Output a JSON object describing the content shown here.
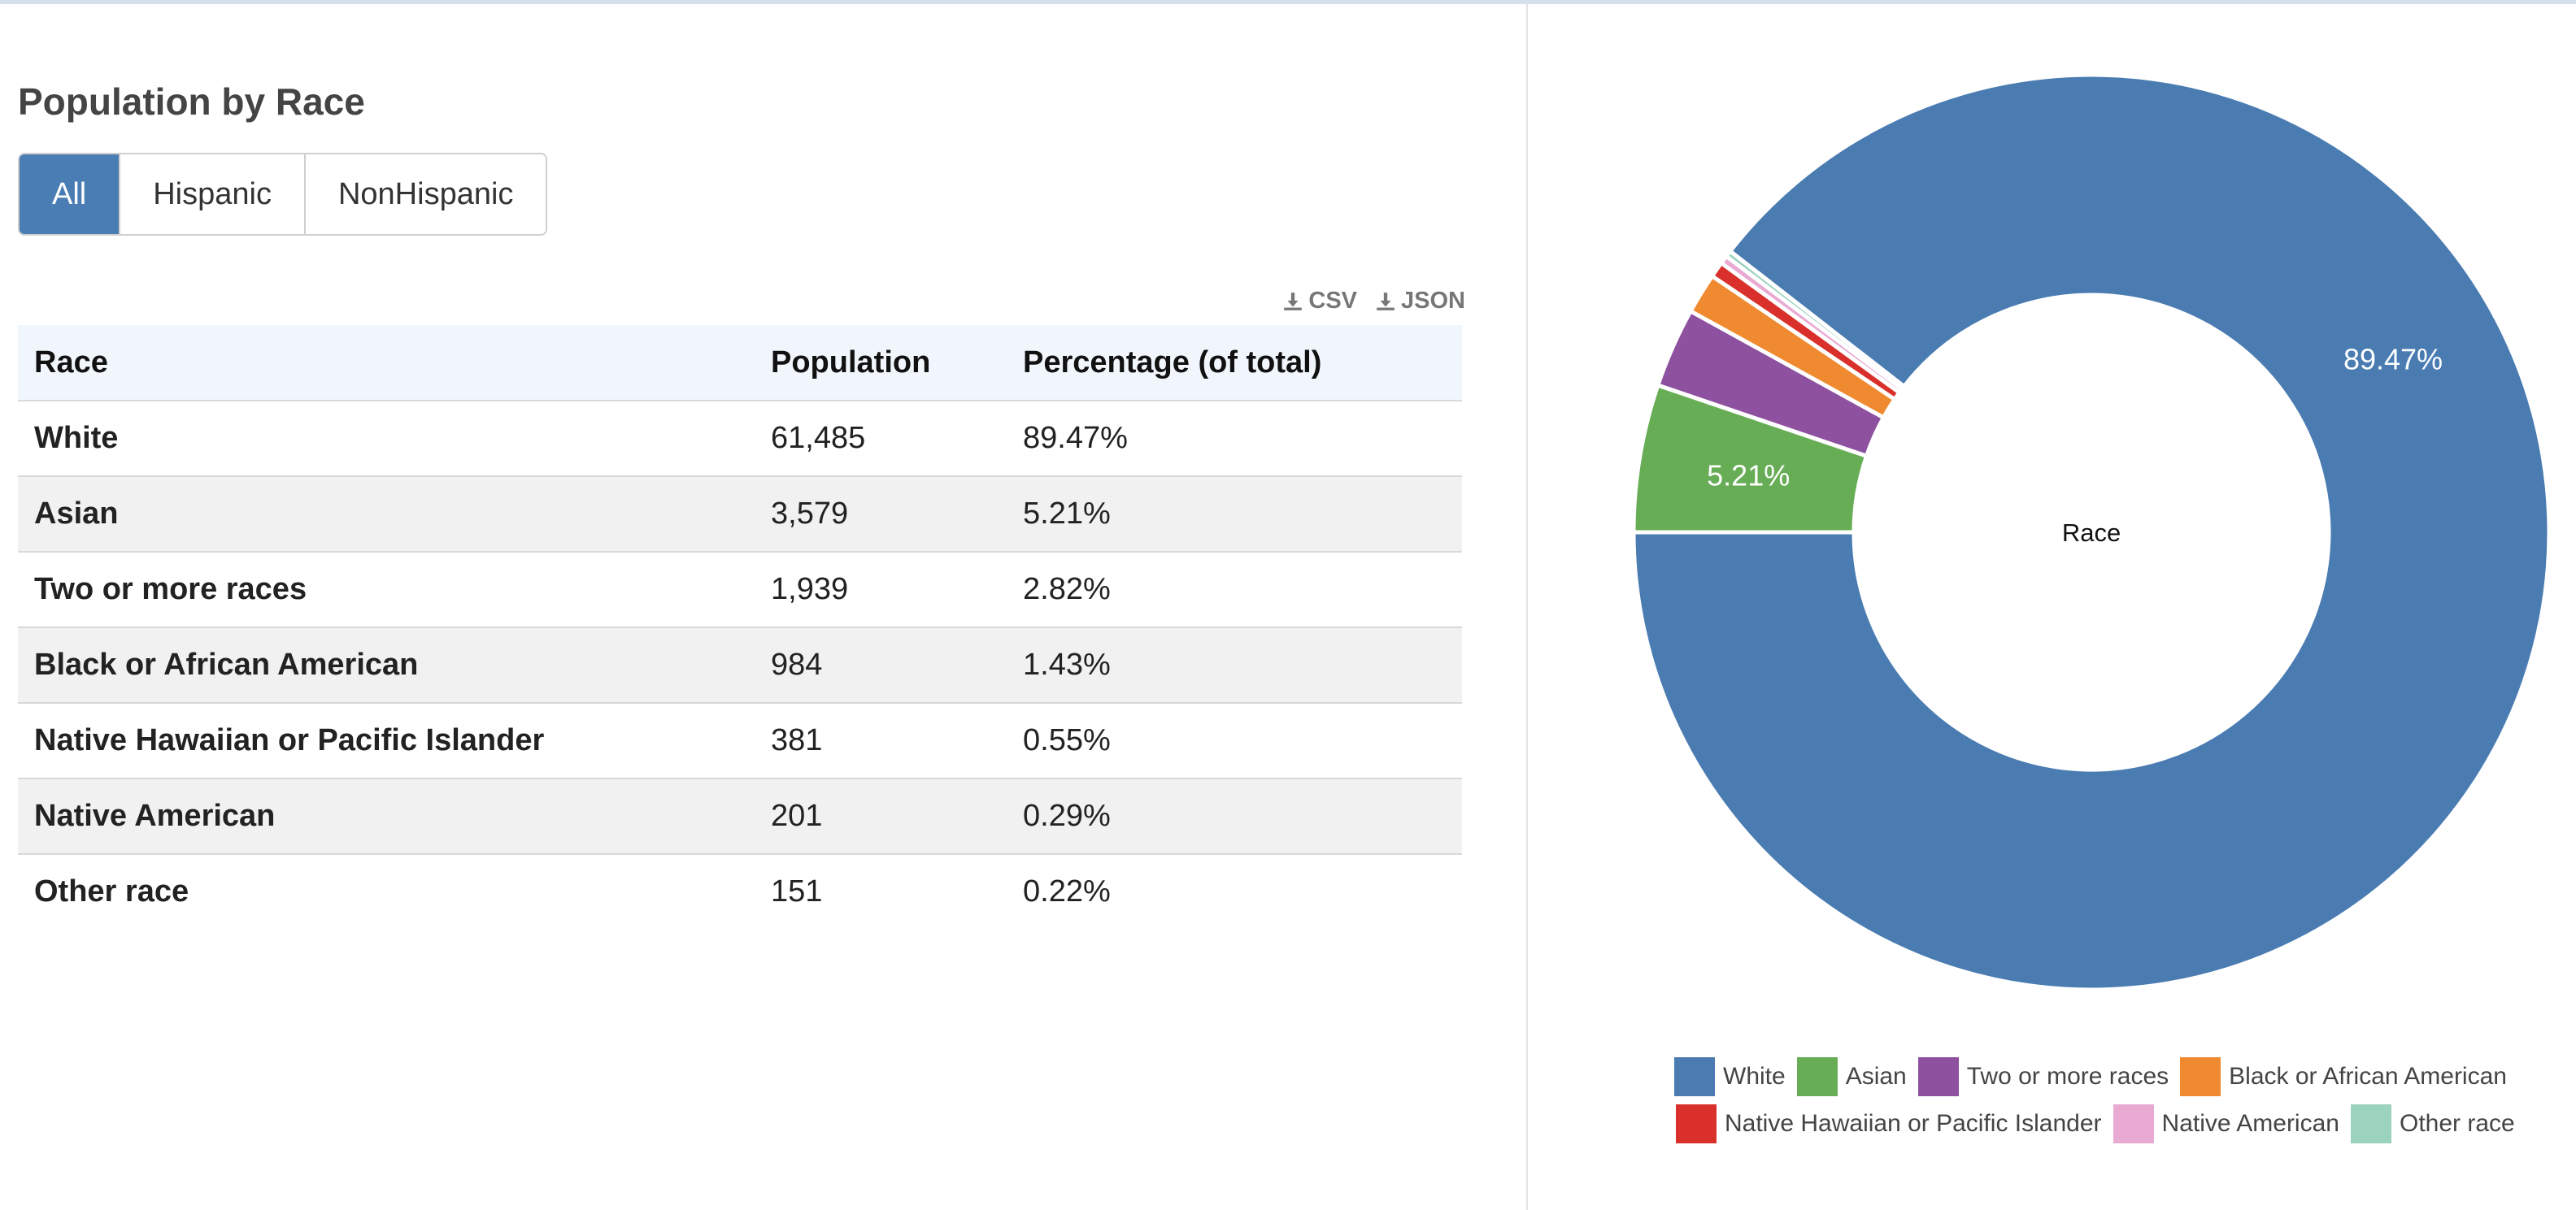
{
  "title": "Population by Race",
  "filters": {
    "all": "All",
    "hispanic": "Hispanic",
    "nonhispanic": "NonHispanic",
    "selected": "All"
  },
  "downloads": {
    "csv": "CSV",
    "json": "JSON"
  },
  "table": {
    "headers": [
      "Race",
      "Population",
      "Percentage (of total)"
    ],
    "rows": [
      {
        "race": "White",
        "population": "61,485",
        "percentage": "89.47%"
      },
      {
        "race": "Asian",
        "population": "3,579",
        "percentage": "5.21%"
      },
      {
        "race": "Two or more races",
        "population": "1,939",
        "percentage": "2.82%"
      },
      {
        "race": "Black or African American",
        "population": "984",
        "percentage": "1.43%"
      },
      {
        "race": "Native Hawaiian or Pacific Islander",
        "population": "381",
        "percentage": "0.55%"
      },
      {
        "race": "Native American",
        "population": "201",
        "percentage": "0.29%"
      },
      {
        "race": "Other race",
        "population": "151",
        "percentage": "0.22%"
      }
    ]
  },
  "chart_data": {
    "type": "pie",
    "donut": true,
    "center_label": "Race",
    "categories": [
      "White",
      "Asian",
      "Two or more races",
      "Black or African American",
      "Native Hawaiian or Pacific Islander",
      "Native American",
      "Other race"
    ],
    "values": [
      61485,
      3579,
      1939,
      984,
      381,
      201,
      151
    ],
    "percentages": [
      89.47,
      5.21,
      2.82,
      1.43,
      0.55,
      0.29,
      0.22
    ],
    "slice_labels": [
      "89.47%",
      "5.21%",
      "",
      "",
      "",
      "",
      ""
    ],
    "colors": [
      "#4a7cb2",
      "#67ad56",
      "#8d51a0",
      "#f08a31",
      "#d9302b",
      "#e8a9d2",
      "#9bd3bf"
    ],
    "legend_position": "bottom"
  }
}
